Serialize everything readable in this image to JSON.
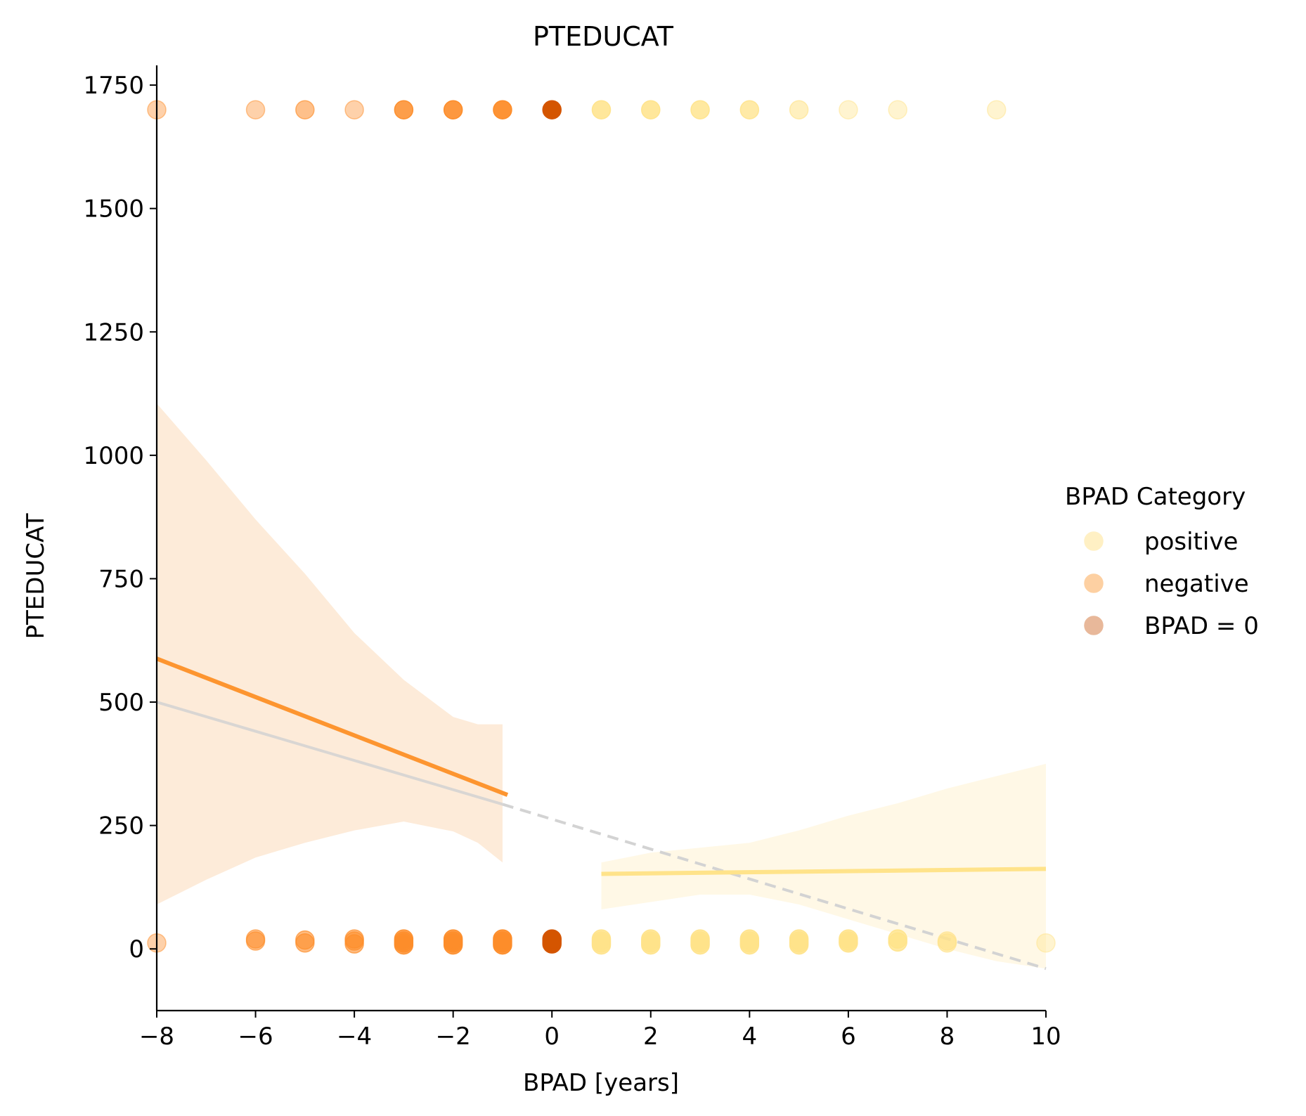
{
  "chart_data": {
    "type": "scatter",
    "title": "PTEDUCAT",
    "xlabel": "BPAD [years]",
    "ylabel": "PTEDUCAT",
    "xlim": [
      -8,
      10
    ],
    "ylim": [
      -125,
      1790
    ],
    "xticks": [
      -8,
      -6,
      -4,
      -2,
      0,
      2,
      4,
      6,
      8,
      10
    ],
    "yticks": [
      0,
      250,
      500,
      750,
      1000,
      1250,
      1500,
      1750
    ],
    "grid": false,
    "legend": {
      "title": "BPAD Category",
      "position": "right",
      "entries": [
        {
          "label": "positive",
          "color": "#fff0c4"
        },
        {
          "label": "negative",
          "color": "#fdd0a2"
        },
        {
          "label": "BPAD = 0",
          "color": "#e8b89a"
        }
      ]
    },
    "colors": {
      "positive_points": "#ffe38a",
      "negative_points": "#fd8d2a",
      "zero_point": "#d45500",
      "positive_line": "#ffe38a",
      "negative_line": "#fd9530",
      "positive_band": "#fff8e6",
      "negative_band": "#fdebd9",
      "overall_line": "#d3d3d3"
    },
    "series": [
      {
        "category": "negative",
        "points": [
          {
            "x": -8,
            "y": 1700,
            "alpha": 0.4
          },
          {
            "x": -6,
            "y": 1700,
            "alpha": 0.4
          },
          {
            "x": -5,
            "y": 1700,
            "alpha": 0.55
          },
          {
            "x": -4,
            "y": 1700,
            "alpha": 0.4
          },
          {
            "x": -3,
            "y": 1700,
            "alpha": 0.85
          },
          {
            "x": -2,
            "y": 1700,
            "alpha": 0.9
          },
          {
            "x": -1,
            "y": 1700,
            "alpha": 0.95
          },
          {
            "x": -8,
            "y": 12,
            "alpha": 0.4
          },
          {
            "x": -6,
            "y": 16,
            "alpha": 0.55
          },
          {
            "x": -6,
            "y": 20,
            "alpha": 0.55
          },
          {
            "x": -5,
            "y": 12,
            "alpha": 0.6
          },
          {
            "x": -5,
            "y": 18,
            "alpha": 0.6
          },
          {
            "x": -4,
            "y": 10,
            "alpha": 0.6
          },
          {
            "x": -4,
            "y": 16,
            "alpha": 0.6
          },
          {
            "x": -4,
            "y": 20,
            "alpha": 0.6
          },
          {
            "x": -3,
            "y": 8,
            "alpha": 0.8
          },
          {
            "x": -3,
            "y": 12,
            "alpha": 0.8
          },
          {
            "x": -3,
            "y": 16,
            "alpha": 0.8
          },
          {
            "x": -3,
            "y": 20,
            "alpha": 0.8
          },
          {
            "x": -2,
            "y": 8,
            "alpha": 0.85
          },
          {
            "x": -2,
            "y": 12,
            "alpha": 0.85
          },
          {
            "x": -2,
            "y": 16,
            "alpha": 0.85
          },
          {
            "x": -2,
            "y": 20,
            "alpha": 0.85
          },
          {
            "x": -1,
            "y": 8,
            "alpha": 0.9
          },
          {
            "x": -1,
            "y": 12,
            "alpha": 0.9
          },
          {
            "x": -1,
            "y": 16,
            "alpha": 0.9
          },
          {
            "x": -1,
            "y": 20,
            "alpha": 0.9
          }
        ]
      },
      {
        "category": "BPAD = 0",
        "points": [
          {
            "x": 0,
            "y": 1700,
            "alpha": 1.0
          },
          {
            "x": 0,
            "y": 10,
            "alpha": 1.0
          },
          {
            "x": 0,
            "y": 14,
            "alpha": 1.0
          },
          {
            "x": 0,
            "y": 18,
            "alpha": 1.0
          },
          {
            "x": 0,
            "y": 20,
            "alpha": 1.0
          }
        ]
      },
      {
        "category": "positive",
        "points": [
          {
            "x": 1,
            "y": 1700,
            "alpha": 0.85
          },
          {
            "x": 2,
            "y": 1700,
            "alpha": 0.85
          },
          {
            "x": 3,
            "y": 1700,
            "alpha": 0.8
          },
          {
            "x": 4,
            "y": 1700,
            "alpha": 0.75
          },
          {
            "x": 5,
            "y": 1700,
            "alpha": 0.55
          },
          {
            "x": 6,
            "y": 1700,
            "alpha": 0.4
          },
          {
            "x": 7,
            "y": 1700,
            "alpha": 0.4
          },
          {
            "x": 9,
            "y": 1700,
            "alpha": 0.4
          },
          {
            "x": 1,
            "y": 8,
            "alpha": 0.85
          },
          {
            "x": 1,
            "y": 12,
            "alpha": 0.85
          },
          {
            "x": 1,
            "y": 16,
            "alpha": 0.85
          },
          {
            "x": 1,
            "y": 20,
            "alpha": 0.85
          },
          {
            "x": 2,
            "y": 8,
            "alpha": 0.85
          },
          {
            "x": 2,
            "y": 12,
            "alpha": 0.85
          },
          {
            "x": 2,
            "y": 16,
            "alpha": 0.85
          },
          {
            "x": 2,
            "y": 20,
            "alpha": 0.85
          },
          {
            "x": 3,
            "y": 8,
            "alpha": 0.85
          },
          {
            "x": 3,
            "y": 12,
            "alpha": 0.85
          },
          {
            "x": 3,
            "y": 16,
            "alpha": 0.85
          },
          {
            "x": 3,
            "y": 20,
            "alpha": 0.85
          },
          {
            "x": 4,
            "y": 8,
            "alpha": 0.85
          },
          {
            "x": 4,
            "y": 12,
            "alpha": 0.85
          },
          {
            "x": 4,
            "y": 16,
            "alpha": 0.85
          },
          {
            "x": 4,
            "y": 20,
            "alpha": 0.85
          },
          {
            "x": 5,
            "y": 8,
            "alpha": 0.85
          },
          {
            "x": 5,
            "y": 12,
            "alpha": 0.85
          },
          {
            "x": 5,
            "y": 16,
            "alpha": 0.85
          },
          {
            "x": 5,
            "y": 20,
            "alpha": 0.85
          },
          {
            "x": 6,
            "y": 12,
            "alpha": 0.85
          },
          {
            "x": 6,
            "y": 16,
            "alpha": 0.85
          },
          {
            "x": 6,
            "y": 20,
            "alpha": 0.85
          },
          {
            "x": 7,
            "y": 14,
            "alpha": 0.8
          },
          {
            "x": 7,
            "y": 20,
            "alpha": 0.8
          },
          {
            "x": 8,
            "y": 12,
            "alpha": 0.6
          },
          {
            "x": 8,
            "y": 16,
            "alpha": 0.6
          },
          {
            "x": 10,
            "y": 12,
            "alpha": 0.4
          }
        ]
      }
    ],
    "regression": {
      "negative": {
        "line": [
          [
            -8,
            588
          ],
          [
            -0.9,
            312
          ]
        ],
        "band_upper": [
          [
            -8,
            1105
          ],
          [
            -7,
            990
          ],
          [
            -6,
            870
          ],
          [
            -5,
            760
          ],
          [
            -4,
            640
          ],
          [
            -3,
            545
          ],
          [
            -2,
            470
          ],
          [
            -1.5,
            455
          ],
          [
            -1,
            455
          ]
        ],
        "band_lower": [
          [
            -8,
            90
          ],
          [
            -7,
            140
          ],
          [
            -6,
            185
          ],
          [
            -5,
            215
          ],
          [
            -4,
            240
          ],
          [
            -3,
            258
          ],
          [
            -2,
            238
          ],
          [
            -1.5,
            215
          ],
          [
            -1,
            175
          ]
        ]
      },
      "positive": {
        "line": [
          [
            1,
            152
          ],
          [
            10,
            162
          ]
        ],
        "band_upper": [
          [
            1,
            175
          ],
          [
            2,
            195
          ],
          [
            3,
            205
          ],
          [
            4,
            215
          ],
          [
            5,
            240
          ],
          [
            6,
            270
          ],
          [
            7,
            295
          ],
          [
            8,
            325
          ],
          [
            9,
            350
          ],
          [
            10,
            375
          ]
        ],
        "band_lower": [
          [
            1,
            80
          ],
          [
            2,
            95
          ],
          [
            3,
            110
          ],
          [
            4,
            110
          ],
          [
            5,
            90
          ],
          [
            6,
            60
          ],
          [
            7,
            30
          ],
          [
            8,
            0
          ],
          [
            9,
            -25
          ],
          [
            10,
            -40
          ]
        ]
      },
      "overall": {
        "solid": [
          [
            -8,
            500
          ],
          [
            -1,
            293
          ]
        ],
        "dashed": [
          [
            -1,
            293
          ],
          [
            10,
            -40
          ]
        ]
      }
    }
  }
}
